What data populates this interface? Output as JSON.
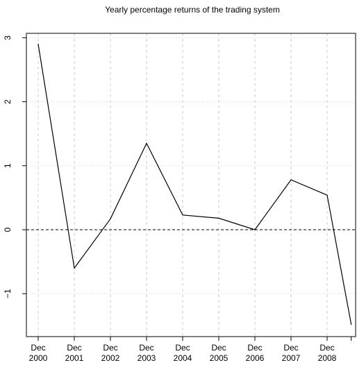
{
  "chart_data": {
    "type": "line",
    "title": "Yearly percentage returns of the trading system",
    "xlabel": "",
    "ylabel": "",
    "x_ticks": [
      {
        "line1": "Dec",
        "line2": "2000"
      },
      {
        "line1": "Dec",
        "line2": "2001"
      },
      {
        "line1": "Dec",
        "line2": "2002"
      },
      {
        "line1": "Dec",
        "line2": "2003"
      },
      {
        "line1": "Dec",
        "line2": "2004"
      },
      {
        "line1": "Dec",
        "line2": "2005"
      },
      {
        "line1": "Dec",
        "line2": "2006"
      },
      {
        "line1": "Dec",
        "line2": "2007"
      },
      {
        "line1": "Dec",
        "line2": "2008"
      }
    ],
    "y_ticks": [
      "−1",
      "0",
      "1",
      "2",
      "3"
    ],
    "y_tick_values": [
      -1,
      0,
      1,
      2,
      3
    ],
    "ylim": [
      -1.6,
      3.1
    ],
    "series": [
      {
        "x": [
          "2000-12",
          "2001-12",
          "2002-12",
          "2003-12",
          "2004-12",
          "2005-12",
          "2006-12",
          "2007-12",
          "2008-12",
          "2009-08"
        ],
        "values": [
          2.9,
          -0.6,
          0.17,
          1.35,
          0.23,
          0.18,
          0.0,
          0.78,
          0.54,
          -1.48
        ]
      }
    ],
    "reference_line": {
      "y": 0,
      "style": "dashed"
    },
    "grid": true,
    "colors": {
      "line": "#000000",
      "grid": "#cccccc",
      "axis": "#000000"
    }
  }
}
